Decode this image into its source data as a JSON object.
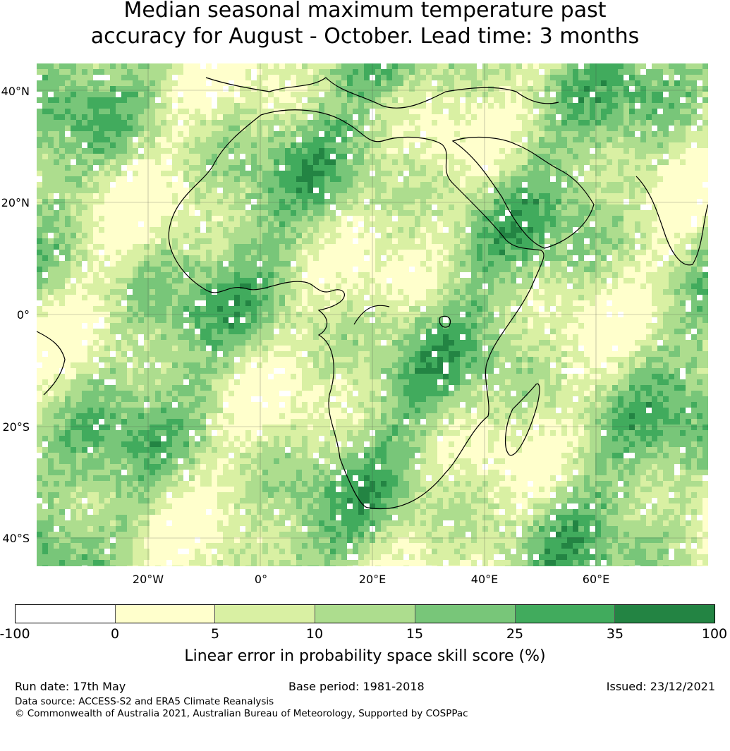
{
  "title": {
    "line1": "Median seasonal maximum temperature past",
    "line2": "accuracy for August - October. Lead time: 3 months"
  },
  "map": {
    "lat_labels": [
      "40°N",
      "20°N",
      "0°",
      "20°S",
      "40°S"
    ],
    "lon_labels": [
      "20°W",
      "0°",
      "20°E",
      "40°E",
      "60°E"
    ],
    "lon_range": [
      -40,
      80
    ],
    "lat_range": [
      -45,
      45
    ],
    "ocean_colors": [
      "#ffffff",
      "#ffffcc",
      "#d9f0a3",
      "#addd8e",
      "#78c679",
      "#41ab5d",
      "#238443"
    ]
  },
  "colorbar": {
    "ticks": [
      "-100",
      "0",
      "5",
      "10",
      "15",
      "25",
      "35",
      "100"
    ],
    "colors": [
      "#ffffff",
      "#ffffcc",
      "#d9f0a3",
      "#addd8e",
      "#78c679",
      "#41ab5d",
      "#238443"
    ],
    "label": "Linear error in probability space skill score (%)"
  },
  "footer": {
    "run_date": "Run date: 17th May",
    "base_period": "Base period: 1981-2018",
    "issued": "Issued: 23/12/2021",
    "data_source": "Data source: ACCESS-S2 and ERA5 Climate Reanalysis",
    "copyright": "© Commonwealth of Australia 2021, Australian Bureau of Meteorology, Supported by COSPPac"
  }
}
